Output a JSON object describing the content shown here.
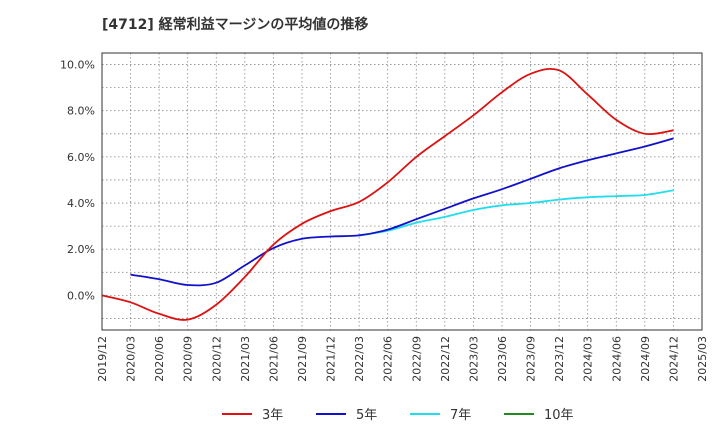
{
  "chart_data": {
    "type": "line",
    "title": "[4712]  経常利益マージンの平均値の推移",
    "xlabel": "",
    "ylabel": "",
    "x_ticks": [
      "2019/12",
      "2020/03",
      "2020/06",
      "2020/09",
      "2020/12",
      "2021/03",
      "2021/06",
      "2021/09",
      "2021/12",
      "2022/03",
      "2022/06",
      "2022/09",
      "2022/12",
      "2023/03",
      "2023/06",
      "2023/09",
      "2023/12",
      "2024/03",
      "2024/06",
      "2024/09",
      "2024/12",
      "2025/03"
    ],
    "y_ticks": [
      0,
      2,
      4,
      6,
      8,
      10
    ],
    "y_tick_labels": [
      "0.0%",
      "2.0%",
      "4.0%",
      "6.0%",
      "8.0%",
      "10.0%"
    ],
    "ylim": [
      -1.5,
      10.5
    ],
    "grid": true,
    "legend_position": "bottom",
    "series": [
      {
        "name": "3年",
        "color": "#dd1111",
        "x": [
          "2019/12",
          "2020/03",
          "2020/06",
          "2020/09",
          "2020/12",
          "2021/03",
          "2021/06",
          "2021/09",
          "2021/12",
          "2022/03",
          "2022/06",
          "2022/09",
          "2022/12",
          "2023/03",
          "2023/06",
          "2023/09",
          "2023/12",
          "2024/03",
          "2024/06",
          "2024/09",
          "2024/12"
        ],
        "values": [
          0.0,
          -0.3,
          -0.8,
          -1.05,
          -0.4,
          0.8,
          2.2,
          3.1,
          3.65,
          4.05,
          4.9,
          6.0,
          6.9,
          7.8,
          8.8,
          9.6,
          9.75,
          8.7,
          7.6,
          7.0,
          7.15
        ]
      },
      {
        "name": "5年",
        "color": "#1111cc",
        "x": [
          "2020/03",
          "2020/06",
          "2020/09",
          "2020/12",
          "2021/03",
          "2021/06",
          "2021/09",
          "2021/12",
          "2022/03",
          "2022/06",
          "2022/09",
          "2022/12",
          "2023/03",
          "2023/06",
          "2023/09",
          "2023/12",
          "2024/03",
          "2024/06",
          "2024/09",
          "2024/12"
        ],
        "values": [
          0.9,
          0.7,
          0.45,
          0.55,
          1.3,
          2.05,
          2.45,
          2.55,
          2.6,
          2.85,
          3.3,
          3.75,
          4.2,
          4.6,
          5.05,
          5.5,
          5.85,
          6.15,
          6.45,
          6.8
        ]
      },
      {
        "name": "7年",
        "color": "#22ddee",
        "x": [
          "2022/03",
          "2022/06",
          "2022/09",
          "2022/12",
          "2023/03",
          "2023/06",
          "2023/09",
          "2023/12",
          "2024/03",
          "2024/06",
          "2024/09",
          "2024/12"
        ],
        "values": [
          2.6,
          2.8,
          3.15,
          3.4,
          3.7,
          3.9,
          4.0,
          4.15,
          4.25,
          4.3,
          4.35,
          4.55
        ]
      },
      {
        "name": "10年",
        "color": "#228822",
        "x": [],
        "values": []
      }
    ]
  }
}
